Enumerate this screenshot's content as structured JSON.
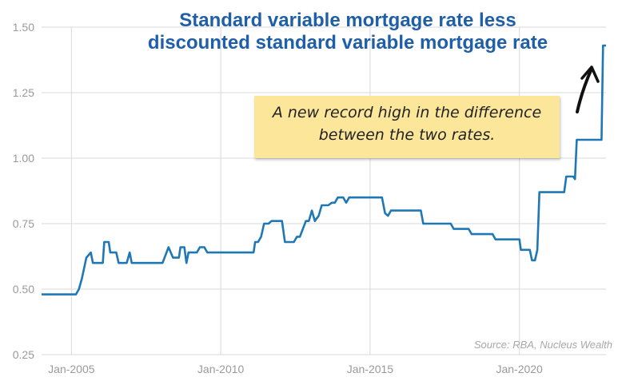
{
  "chart_data": {
    "type": "line",
    "title": "Standard variable mortgage rate less discounted standard variable mortgage rate",
    "title_lines": [
      "Standard variable mortgage rate less",
      "discounted standard variable mortgage rate"
    ],
    "xlabel": "",
    "ylabel": "",
    "xlim": [
      2004.0,
      2022.9
    ],
    "ylim": [
      0.25,
      1.5
    ],
    "y_ticks": [
      0.25,
      0.5,
      0.75,
      1.0,
      1.25,
      1.5
    ],
    "y_tick_labels": [
      "0.25",
      "0.50",
      "0.75",
      "1.00",
      "1.25",
      "1.50"
    ],
    "x_ticks": [
      2005,
      2010,
      2015,
      2020
    ],
    "x_tick_labels": [
      "Jan-2005",
      "Jan-2010",
      "Jan-2015",
      "Jan-2020"
    ],
    "grid": true,
    "line_color": "#1f77b4",
    "series": [
      {
        "points": [
          [
            2004.0,
            0.48
          ],
          [
            2005.15,
            0.48
          ],
          [
            2005.25,
            0.5
          ],
          [
            2005.35,
            0.54
          ],
          [
            2005.5,
            0.62
          ],
          [
            2005.65,
            0.64
          ],
          [
            2005.72,
            0.6
          ],
          [
            2006.05,
            0.6
          ],
          [
            2006.1,
            0.68
          ],
          [
            2006.25,
            0.68
          ],
          [
            2006.3,
            0.64
          ],
          [
            2006.5,
            0.64
          ],
          [
            2006.58,
            0.6
          ],
          [
            2006.85,
            0.6
          ],
          [
            2006.95,
            0.64
          ],
          [
            2007.02,
            0.6
          ],
          [
            2008.05,
            0.6
          ],
          [
            2008.25,
            0.66
          ],
          [
            2008.4,
            0.62
          ],
          [
            2008.6,
            0.62
          ],
          [
            2008.65,
            0.66
          ],
          [
            2008.78,
            0.66
          ],
          [
            2008.85,
            0.6
          ],
          [
            2008.92,
            0.64
          ],
          [
            2009.2,
            0.64
          ],
          [
            2009.3,
            0.66
          ],
          [
            2009.45,
            0.66
          ],
          [
            2009.55,
            0.64
          ],
          [
            2011.1,
            0.64
          ],
          [
            2011.15,
            0.68
          ],
          [
            2011.25,
            0.68
          ],
          [
            2011.35,
            0.7
          ],
          [
            2011.45,
            0.75
          ],
          [
            2011.6,
            0.75
          ],
          [
            2011.7,
            0.76
          ],
          [
            2012.05,
            0.76
          ],
          [
            2012.15,
            0.68
          ],
          [
            2012.45,
            0.68
          ],
          [
            2012.55,
            0.7
          ],
          [
            2012.65,
            0.7
          ],
          [
            2012.85,
            0.76
          ],
          [
            2012.95,
            0.76
          ],
          [
            2013.05,
            0.8
          ],
          [
            2013.15,
            0.76
          ],
          [
            2013.28,
            0.78
          ],
          [
            2013.38,
            0.82
          ],
          [
            2013.6,
            0.82
          ],
          [
            2013.72,
            0.83
          ],
          [
            2013.82,
            0.83
          ],
          [
            2013.92,
            0.85
          ],
          [
            2014.1,
            0.85
          ],
          [
            2014.2,
            0.83
          ],
          [
            2014.3,
            0.85
          ],
          [
            2015.4,
            0.85
          ],
          [
            2015.5,
            0.79
          ],
          [
            2015.6,
            0.78
          ],
          [
            2015.7,
            0.8
          ],
          [
            2016.7,
            0.8
          ],
          [
            2016.78,
            0.75
          ],
          [
            2017.7,
            0.75
          ],
          [
            2017.8,
            0.73
          ],
          [
            2018.3,
            0.73
          ],
          [
            2018.4,
            0.71
          ],
          [
            2019.1,
            0.71
          ],
          [
            2019.2,
            0.69
          ],
          [
            2020.0,
            0.69
          ],
          [
            2020.05,
            0.65
          ],
          [
            2020.35,
            0.65
          ],
          [
            2020.42,
            0.61
          ],
          [
            2020.52,
            0.61
          ],
          [
            2020.6,
            0.65
          ],
          [
            2020.67,
            0.87
          ],
          [
            2021.5,
            0.87
          ],
          [
            2021.57,
            0.93
          ],
          [
            2021.8,
            0.93
          ],
          [
            2021.86,
            0.92
          ],
          [
            2021.92,
            1.07
          ],
          [
            2022.75,
            1.07
          ],
          [
            2022.8,
            1.43
          ],
          [
            2022.9,
            1.43
          ]
        ]
      }
    ],
    "annotation": {
      "lines": [
        "A new record high in the difference",
        "between the two rates."
      ]
    },
    "source": "Source: RBA, Nucleus Wealth"
  }
}
